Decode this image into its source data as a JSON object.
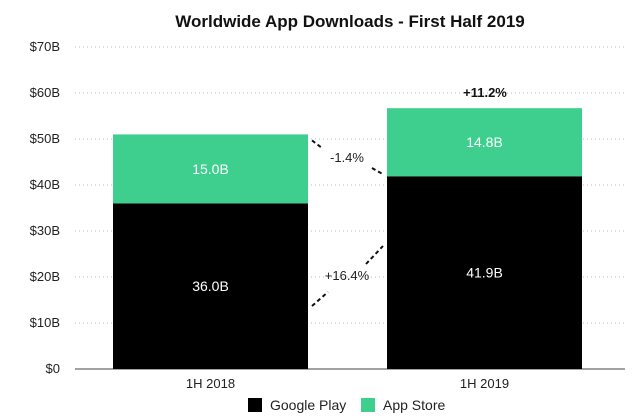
{
  "chart_data": {
    "type": "bar",
    "stacked": true,
    "title": "Worldwide App Downloads - First Half 2019",
    "xlabel": "",
    "ylabel": "",
    "categories": [
      "1H 2018",
      "1H 2019"
    ],
    "series": [
      {
        "name": "Google Play",
        "values": [
          36.0,
          41.9
        ],
        "labels": [
          "36.0B",
          "41.9B"
        ],
        "color": "#000000",
        "label_color": "#ffffff"
      },
      {
        "name": "App Store",
        "values": [
          15.0,
          14.8
        ],
        "labels": [
          "15.0B",
          "14.8B"
        ],
        "color": "#3ecf8e",
        "label_color": "#ffffff"
      }
    ],
    "ylim": [
      0,
      70
    ],
    "y_ticks": [
      0,
      10,
      20,
      30,
      40,
      50,
      60,
      70
    ],
    "y_tick_labels": [
      "$0",
      "$10B",
      "$20B",
      "$30B",
      "$40B",
      "$50B",
      "$60B",
      "$70B"
    ],
    "grid": true,
    "legend": "bottom-center",
    "annotations": {
      "total_change": "+11.2%",
      "app_store_change": "-1.4%",
      "google_play_change": "+16.4%"
    }
  }
}
